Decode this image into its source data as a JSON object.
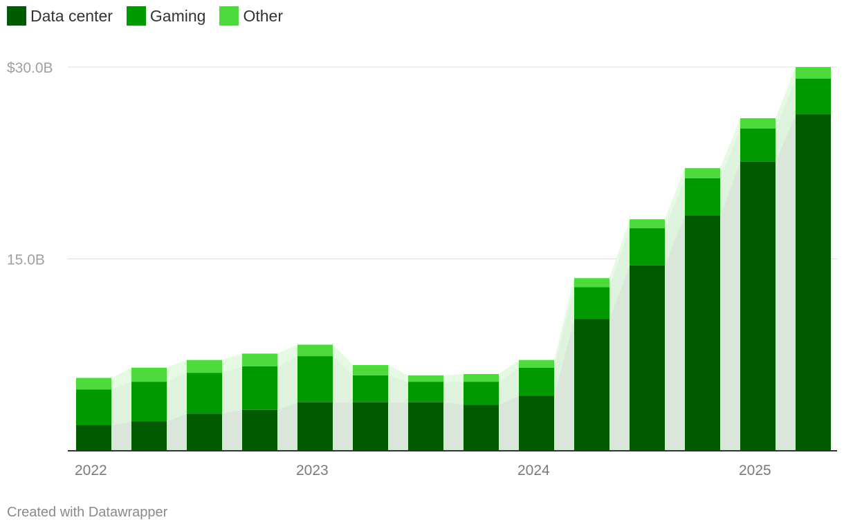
{
  "legend": {
    "items": [
      {
        "label": "Data center",
        "color": "#005b00"
      },
      {
        "label": "Gaming",
        "color": "#009900"
      },
      {
        "label": "Other",
        "color": "#4cda3c"
      }
    ]
  },
  "chart_data": {
    "type": "bar",
    "stacked": true,
    "title": "",
    "xlabel": "",
    "ylabel": "",
    "ylim": [
      0,
      30
    ],
    "y_ticks": [
      {
        "value": 30,
        "label": "$30.0B"
      },
      {
        "value": 15,
        "label": "15.0B"
      }
    ],
    "x_ticks": [
      {
        "index": 0,
        "label": "2022"
      },
      {
        "index": 4,
        "label": "2023"
      },
      {
        "index": 8,
        "label": "2024"
      },
      {
        "index": 12,
        "label": "2025"
      }
    ],
    "categories": [
      "Q1 2022",
      "Q2 2022",
      "Q3 2022",
      "Q4 2022",
      "Q1 2023",
      "Q2 2023",
      "Q3 2023",
      "Q4 2023",
      "Q1 2024",
      "Q2 2024",
      "Q3 2024",
      "Q4 2024",
      "Q1 2025",
      "Q2 2025"
    ],
    "series": [
      {
        "name": "Data center",
        "color": "#005b00",
        "values": [
          2.0,
          2.3,
          2.9,
          3.2,
          3.8,
          3.8,
          3.8,
          3.6,
          4.3,
          10.3,
          14.5,
          18.4,
          22.6,
          26.3
        ]
      },
      {
        "name": "Gaming",
        "color": "#009900",
        "values": [
          2.8,
          3.1,
          3.2,
          3.4,
          3.6,
          2.1,
          1.6,
          1.8,
          2.2,
          2.5,
          2.9,
          2.9,
          2.6,
          2.8
        ]
      },
      {
        "name": "Other",
        "color": "#4cda3c",
        "values": [
          0.9,
          1.1,
          1.0,
          1.0,
          0.9,
          0.8,
          0.5,
          0.6,
          0.6,
          0.7,
          0.7,
          0.8,
          0.8,
          0.9
        ]
      }
    ],
    "grid": true,
    "legend_position": "top-left"
  },
  "footer": {
    "credit": "Created with Datawrapper"
  }
}
